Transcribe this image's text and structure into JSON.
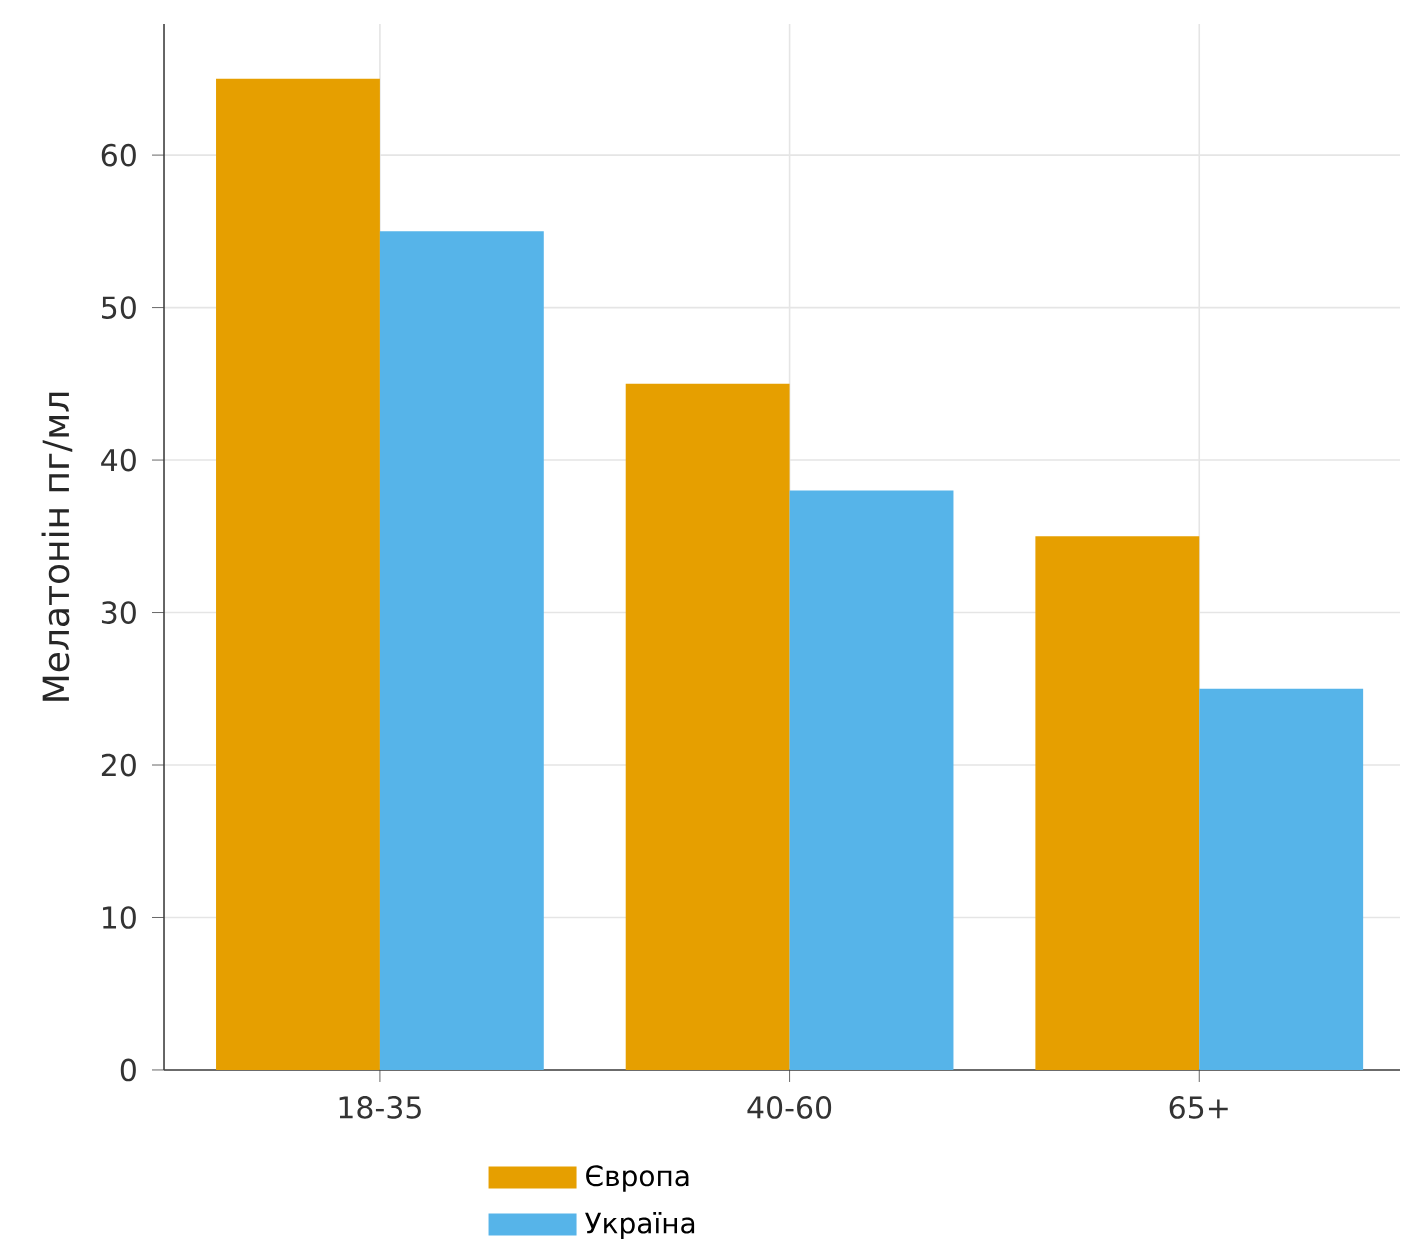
{
  "chart_data": {
    "type": "bar",
    "ylabel": "Мелатонін пг/мл",
    "categories": [
      "18-35",
      "40-60",
      "65+"
    ],
    "series": [
      {
        "name": "Європа",
        "color": "#e69f00",
        "values": [
          65,
          45,
          35
        ]
      },
      {
        "name": "Україна",
        "color": "#56b4e9",
        "values": [
          55,
          38,
          25
        ]
      }
    ],
    "ylim": [
      0,
      68.6
    ],
    "yticks": [
      0,
      10,
      20,
      30,
      40,
      50,
      60
    ],
    "grid": true,
    "legend": "bottom"
  }
}
